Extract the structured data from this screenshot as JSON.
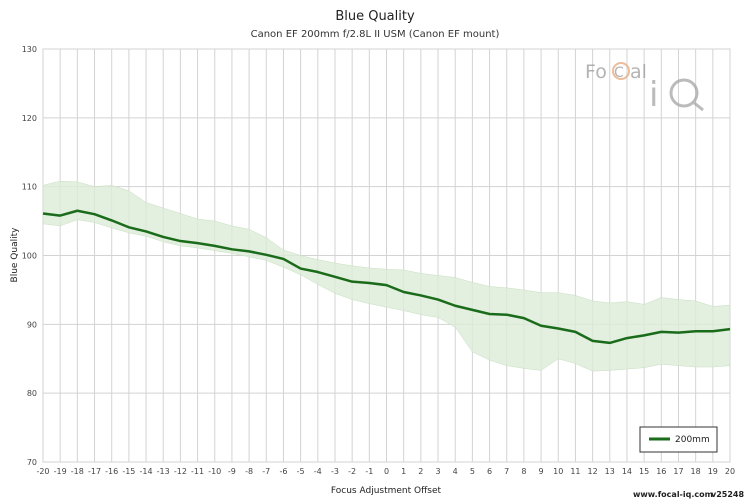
{
  "chart_data": {
    "type": "line",
    "title": "Blue Quality",
    "subtitle": "Canon EF 200mm f/2.8L II USM (Canon EF mount)",
    "xlabel": "Focus Adjustment Offset",
    "ylabel": "Blue Quality",
    "xlim": [
      -20,
      20
    ],
    "ylim": [
      70,
      130
    ],
    "y_ticks": [
      70,
      80,
      90,
      100,
      110,
      120,
      130
    ],
    "grid": true,
    "legend_position": "bottom-right",
    "x": [
      -20,
      -19,
      -18,
      -17,
      -16,
      -15,
      -14,
      -13,
      -12,
      -11,
      -10,
      -9,
      -8,
      -7,
      -6,
      -5,
      -4,
      -3,
      -2,
      -1,
      0,
      1,
      2,
      3,
      4,
      5,
      6,
      7,
      8,
      9,
      10,
      11,
      12,
      13,
      14,
      15,
      16,
      17,
      18,
      19,
      20
    ],
    "series": [
      {
        "name": "200mm",
        "color": "#1a6b1a",
        "values": [
          106.1,
          105.8,
          106.5,
          106.0,
          105.1,
          104.1,
          103.5,
          102.7,
          102.1,
          101.8,
          101.4,
          100.9,
          100.6,
          100.1,
          99.5,
          98.1,
          97.6,
          96.9,
          96.2,
          96.0,
          95.7,
          94.7,
          94.2,
          93.6,
          92.7,
          92.1,
          91.5,
          91.4,
          90.9,
          89.8,
          89.4,
          88.9,
          87.6,
          87.3,
          88.0,
          88.4,
          88.9,
          88.8,
          89.0,
          89.0,
          89.3
        ],
        "band_upper": [
          110.2,
          110.8,
          110.7,
          110.0,
          110.2,
          109.4,
          107.7,
          106.9,
          106.1,
          105.3,
          105.0,
          104.3,
          103.8,
          102.6,
          100.8,
          100.0,
          99.4,
          98.9,
          98.5,
          98.2,
          98.0,
          97.9,
          97.4,
          97.1,
          96.8,
          96.1,
          95.5,
          95.3,
          95.0,
          94.6,
          94.6,
          94.2,
          93.4,
          93.1,
          93.3,
          92.9,
          93.9,
          93.6,
          93.4,
          92.6,
          92.8
        ],
        "band_lower": [
          104.6,
          104.3,
          105.2,
          104.8,
          104.0,
          103.3,
          102.8,
          102.0,
          101.4,
          101.1,
          100.7,
          100.3,
          99.8,
          99.3,
          98.3,
          97.2,
          95.8,
          94.5,
          93.6,
          93.0,
          92.5,
          92.0,
          91.4,
          91.0,
          89.6,
          86.0,
          84.8,
          84.0,
          83.6,
          83.3,
          85.0,
          84.3,
          83.2,
          83.3,
          83.5,
          83.7,
          84.2,
          84.0,
          83.8,
          83.8,
          84.0
        ]
      }
    ]
  },
  "watermark": {
    "brand": "FoCal iQ",
    "url_text": "www.focal-iq.com",
    "version_text": "v25248"
  },
  "colors": {
    "line": "#1a6b1a",
    "band": "#dcebd7",
    "grid": "#d3d3d3"
  }
}
